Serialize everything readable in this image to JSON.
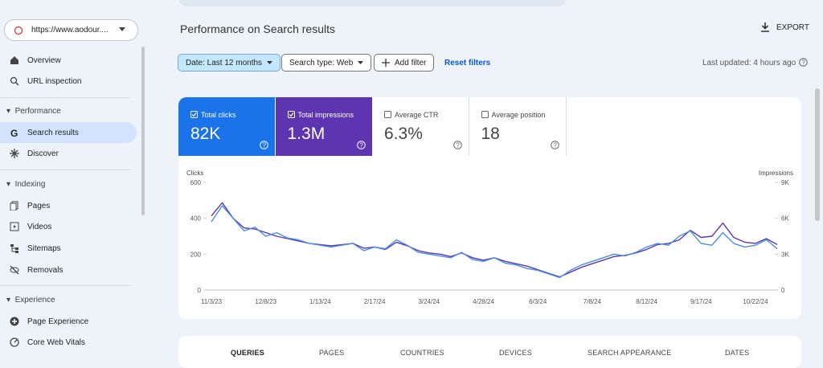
{
  "sidebar": {
    "property": "https://www.aodour....",
    "top_items": [
      "Overview",
      "URL inspection"
    ],
    "sections": [
      {
        "title": "Performance",
        "items": [
          "Search results",
          "Discover"
        ]
      },
      {
        "title": "Indexing",
        "items": [
          "Pages",
          "Videos",
          "Sitemaps",
          "Removals"
        ]
      },
      {
        "title": "Experience",
        "items": [
          "Page Experience",
          "Core Web Vitals"
        ]
      }
    ]
  },
  "header": {
    "title": "Performance on Search results",
    "export": "EXPORT"
  },
  "filters": {
    "chips": [
      "Date: Last 12 months",
      "Search type: Web"
    ],
    "add": "Add filter",
    "reset": "Reset filters",
    "last_updated": "Last updated: 4 hours ago"
  },
  "metrics": [
    {
      "label": "Total clicks",
      "value": "82K",
      "checked": true,
      "color": "#1a73e8"
    },
    {
      "label": "Total impressions",
      "value": "1.3M",
      "checked": true,
      "color": "#5e35b1"
    },
    {
      "label": "Average CTR",
      "value": "6.3%",
      "checked": false,
      "color": "#ffffff"
    },
    {
      "label": "Average position",
      "value": "18",
      "checked": false,
      "color": "#ffffff"
    }
  ],
  "chart_data": {
    "type": "line",
    "categories": [
      "11/3/23",
      null,
      null,
      null,
      null,
      "12/8/23",
      null,
      null,
      null,
      null,
      "1/13/24",
      null,
      null,
      null,
      null,
      "2/17/24",
      null,
      null,
      null,
      null,
      "3/24/24",
      null,
      null,
      null,
      null,
      "4/28/24",
      null,
      null,
      null,
      null,
      "6/3/24",
      null,
      null,
      null,
      null,
      "7/8/24",
      null,
      null,
      null,
      null,
      "8/12/24",
      null,
      null,
      null,
      null,
      "9/17/24",
      null,
      null,
      null,
      null,
      "10/22/24",
      null,
      null
    ],
    "series": [
      {
        "name": "Clicks",
        "color": "#4a90e2",
        "values": [
          380,
          470,
          400,
          330,
          350,
          300,
          320,
          290,
          280,
          260,
          250,
          240,
          250,
          260,
          220,
          240,
          230,
          280,
          250,
          210,
          200,
          190,
          180,
          210,
          170,
          160,
          180,
          150,
          140,
          120,
          110,
          90,
          70,
          110,
          140,
          160,
          180,
          200,
          190,
          210,
          240,
          260,
          250,
          300,
          330,
          260,
          250,
          320,
          260,
          240,
          250,
          280,
          230
        ]
      },
      {
        "name": "Impressions",
        "color": "#5e35b1",
        "axis": "y2",
        "values": [
          6200,
          7300,
          6000,
          5200,
          5100,
          4800,
          4500,
          4300,
          4100,
          3900,
          3800,
          3700,
          3800,
          3900,
          3500,
          3600,
          3400,
          4000,
          3700,
          3300,
          3100,
          3000,
          2800,
          3100,
          2700,
          2500,
          2700,
          2400,
          2200,
          2000,
          1700,
          1400,
          1100,
          1500,
          1900,
          2200,
          2500,
          2800,
          2900,
          3100,
          3400,
          3800,
          3900,
          4200,
          5000,
          4400,
          4500,
          5600,
          4400,
          4000,
          3900,
          4300,
          3800
        ]
      }
    ],
    "ylim": [
      0,
      600
    ],
    "yticks": [
      0,
      200,
      400,
      600
    ],
    "y2lim": [
      0,
      9000
    ],
    "y2ticks": [
      0,
      {
        "value": 3000,
        "label": "3K"
      },
      {
        "value": 6000,
        "label": "6K"
      },
      {
        "value": 9000,
        "label": "9K"
      }
    ]
  },
  "tabs": [
    "QUERIES",
    "PAGES",
    "COUNTRIES",
    "DEVICES",
    "SEARCH APPEARANCE",
    "DATES"
  ]
}
